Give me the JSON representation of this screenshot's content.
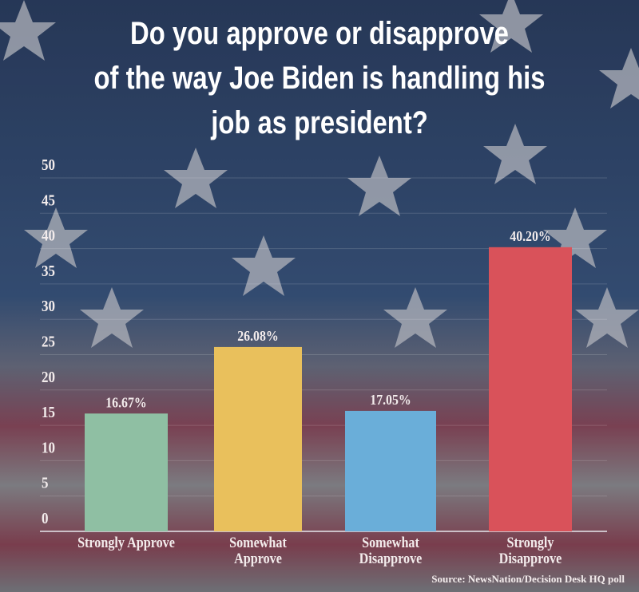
{
  "title_lines": [
    "Do you approve or disapprove",
    "of the way Joe Biden is handling his",
    "job as president?"
  ],
  "source": "Source: NewsNation/Decision Desk HQ poll",
  "chart_data": {
    "type": "bar",
    "title": "Do you approve or disapprove of the way Joe Biden is handling his job as president?",
    "categories": [
      [
        "Strongly Approve"
      ],
      [
        "Somewhat",
        "Approve"
      ],
      [
        "Somewhat",
        "Disapprove"
      ],
      [
        "Strongly",
        "Disapprove"
      ]
    ],
    "values": [
      16.67,
      26.08,
      17.05,
      40.2
    ],
    "data_labels": [
      "16.67%",
      "26.08%",
      "17.05%",
      "40.20%"
    ],
    "colors": [
      "#8fbfa3",
      "#e9c05c",
      "#6aaed9",
      "#d9525a"
    ],
    "yticks": [
      "0",
      "5",
      "10",
      "15",
      "20",
      "25",
      "30",
      "35",
      "40",
      "45",
      "50"
    ],
    "ylim": [
      0,
      50
    ],
    "grid": true,
    "xlabel": "",
    "ylabel": ""
  }
}
